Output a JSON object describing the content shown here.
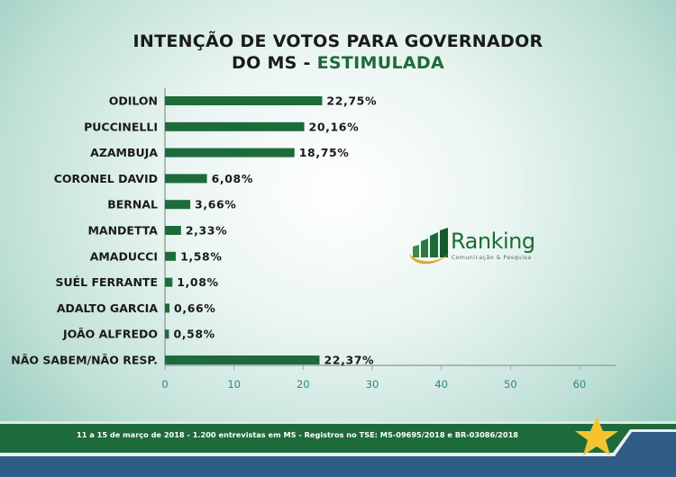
{
  "title": {
    "line1": "INTENÇÃO DE VOTOS PARA GOVERNADOR",
    "line2_prefix": "DO MS",
    "line2_sep": " - ",
    "line2_highlight": "ESTIMULADA"
  },
  "chart_data": {
    "type": "bar",
    "orientation": "horizontal",
    "categories": [
      "ODILON",
      "PUCCINELLI",
      "AZAMBUJA",
      "CORONEL DAVID",
      "BERNAL",
      "MANDETTA",
      "AMADUCCI",
      "SUÉL FERRANTE",
      "ADALTO GARCIA",
      "JOÃO ALFREDO",
      "NÃO SABEM/NÃO RESP."
    ],
    "values": [
      22.75,
      20.16,
      18.75,
      6.08,
      3.66,
      2.33,
      1.58,
      1.08,
      0.66,
      0.58,
      22.37
    ],
    "labels": [
      "22,75%",
      "20,16%",
      "18,75%",
      "6,08%",
      "3,66%",
      "2,33%",
      "1,58%",
      "1,08%",
      "0,66%",
      "0,58%",
      "22,37%"
    ],
    "xlim": [
      0,
      65
    ],
    "xticks": [
      0,
      10,
      20,
      30,
      40,
      50,
      60
    ],
    "grid": false,
    "bar_color": "#1d6b3a",
    "highlight_label_color": "#d63a2a"
  },
  "logo": {
    "word": "Ranking",
    "subtitle": "Comunicação & Pesquisa"
  },
  "footer": {
    "text": "11 a 15 de março de 2018 - 1.200 entrevistas em MS - Registros no TSE: MS-09695/2018 e BR-03086/2018"
  },
  "colors": {
    "green": "#1d6b3a",
    "blue": "#2f5d86",
    "star": "#f4c430"
  }
}
